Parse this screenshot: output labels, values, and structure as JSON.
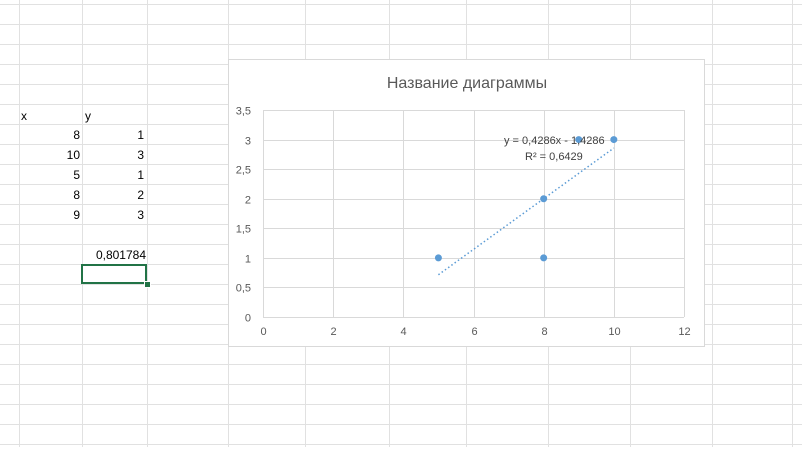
{
  "sheet": {
    "headers": {
      "x": "x",
      "y": "y"
    },
    "rows": [
      {
        "x": "8",
        "y": "1"
      },
      {
        "x": "10",
        "y": "3"
      },
      {
        "x": "5",
        "y": "1"
      },
      {
        "x": "8",
        "y": "2"
      },
      {
        "x": "9",
        "y": "3"
      }
    ],
    "result_value": "0,801784"
  },
  "chart_data": {
    "type": "scatter",
    "title": "Название диаграммы",
    "xlabel": "",
    "ylabel": "",
    "xlim": [
      0,
      12
    ],
    "ylim": [
      0,
      3.5
    ],
    "x_ticks": [
      "0",
      "2",
      "4",
      "6",
      "8",
      "10",
      "12"
    ],
    "y_ticks": [
      "0",
      "0,5",
      "1",
      "1,5",
      "2",
      "2,5",
      "3",
      "3,5"
    ],
    "grid": true,
    "points": [
      {
        "x": 8,
        "y": 1
      },
      {
        "x": 10,
        "y": 3
      },
      {
        "x": 5,
        "y": 1
      },
      {
        "x": 8,
        "y": 2
      },
      {
        "x": 9,
        "y": 3
      }
    ],
    "trendline": {
      "type": "linear",
      "slope": 0.4286,
      "intercept": -1.4286,
      "x_range": [
        5,
        10
      ],
      "equation_label": "y = 0,4286x - 1,4286",
      "r2_label": "R² = 0,6429"
    },
    "colors": {
      "marker": "#5b9bd5",
      "trendline": "#5b9bd5",
      "grid": "#d9d9d9"
    }
  }
}
